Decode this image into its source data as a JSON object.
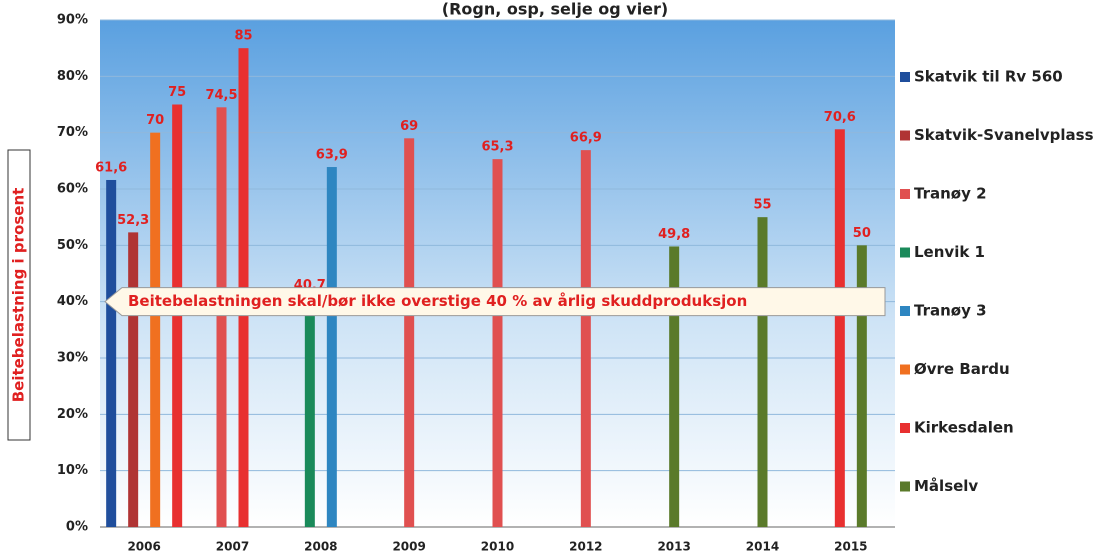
{
  "chart_data": {
    "type": "bar",
    "subtitle": "(Rogn, osp, selje og vier)",
    "ylabel": "Beitebelastning i prosent",
    "annotation": "Beitebelastningen skal/bør ikke overstige 40 % av årlig skuddproduksjon",
    "annotation_value": 40,
    "categories": [
      "2006",
      "2007",
      "2008",
      "2009",
      "2010",
      "2012",
      "2013",
      "2014",
      "2015"
    ],
    "series": [
      {
        "name": "Skatvik til Rv 560",
        "color": "#1f4e9c",
        "values": [
          61.6,
          null,
          null,
          null,
          null,
          null,
          null,
          null,
          null
        ],
        "value_labels": [
          "61,6",
          null,
          null,
          null,
          null,
          null,
          null,
          null,
          null
        ]
      },
      {
        "name": "Skatvik-Svanelvplass",
        "color": "#b03434",
        "values": [
          52.3,
          null,
          null,
          null,
          null,
          null,
          null,
          null,
          null
        ],
        "value_labels": [
          "52,3",
          null,
          null,
          null,
          null,
          null,
          null,
          null,
          null
        ]
      },
      {
        "name": "Tranøy 2",
        "color": "#e05050",
        "values": [
          null,
          74.5,
          null,
          69,
          65.3,
          66.9,
          null,
          null,
          null
        ],
        "value_labels": [
          null,
          "74,5",
          null,
          "69",
          "65,3",
          "66,9",
          null,
          null,
          null
        ]
      },
      {
        "name": "Lenvik 1",
        "color": "#1a8a5a",
        "values": [
          null,
          null,
          40.7,
          null,
          null,
          null,
          null,
          null,
          null
        ],
        "value_labels": [
          null,
          null,
          "40,7",
          null,
          null,
          null,
          null,
          null,
          null
        ]
      },
      {
        "name": "Tranøy 3",
        "color": "#2e86c1",
        "values": [
          null,
          null,
          63.9,
          null,
          null,
          null,
          null,
          null,
          null
        ],
        "value_labels": [
          null,
          null,
          "63,9",
          null,
          null,
          null,
          null,
          null,
          null
        ]
      },
      {
        "name": "Øvre Bardu",
        "color": "#f07020",
        "values": [
          70,
          null,
          null,
          null,
          null,
          null,
          null,
          null,
          null
        ],
        "value_labels": [
          "70",
          null,
          null,
          null,
          null,
          null,
          null,
          null,
          null
        ]
      },
      {
        "name": "Kirkesdalen",
        "color": "#e83030",
        "values": [
          75,
          85,
          null,
          null,
          null,
          null,
          null,
          null,
          70.6
        ],
        "value_labels": [
          "75",
          "85",
          null,
          null,
          null,
          null,
          null,
          null,
          "70,6"
        ]
      },
      {
        "name": "Målselv",
        "color": "#5a7a2a",
        "values": [
          null,
          null,
          null,
          null,
          null,
          null,
          49.8,
          55,
          50
        ],
        "value_labels": [
          null,
          null,
          null,
          null,
          null,
          null,
          "49,8",
          "55",
          "50"
        ]
      }
    ],
    "ylim": [
      0,
      90
    ],
    "yticks": [
      {
        "value": 0,
        "label": "0%"
      },
      {
        "value": 10,
        "label": "10%"
      },
      {
        "value": 20,
        "label": "20%"
      },
      {
        "value": 30,
        "label": "30%"
      },
      {
        "value": 40,
        "label": "40%"
      },
      {
        "value": 50,
        "label": "50%"
      },
      {
        "value": 60,
        "label": "60%"
      },
      {
        "value": 70,
        "label": "70%"
      },
      {
        "value": 80,
        "label": "80%"
      },
      {
        "value": 90,
        "label": "90%"
      }
    ],
    "grid": true,
    "legend": "right"
  }
}
